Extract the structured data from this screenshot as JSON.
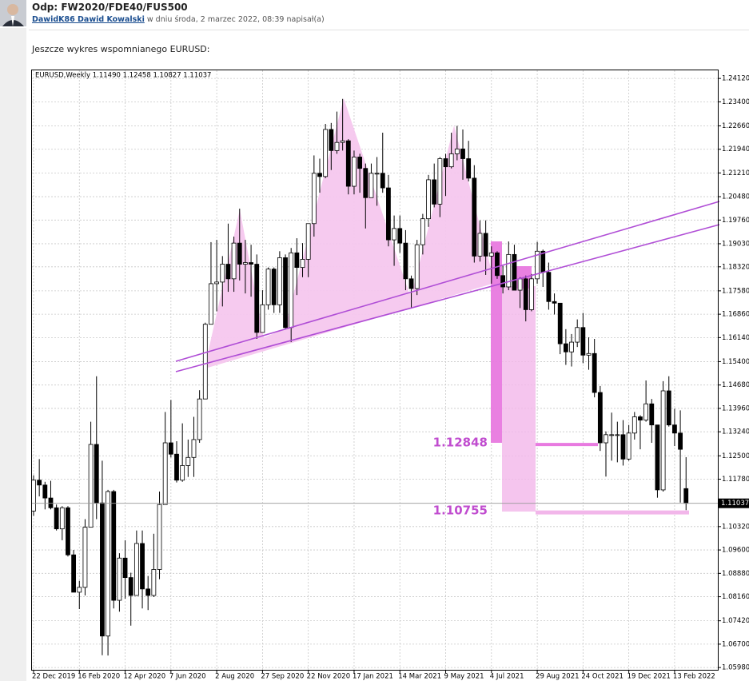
{
  "post": {
    "title": "Odp: FW2020/FDE40/FUS500",
    "author": "DawidK86 Dawid Kowalski",
    "meta": "w dniu środa, 2 marzec 2022, 08:39 napisał(a)",
    "body": "Jeszcze wykres wspomnianego EURUSD:"
  },
  "chart_data": {
    "type": "candlestick",
    "title": "EURUSD,Weekly  1.11490 1.12458 1.10827 1.11037",
    "categories": [
      "22 Dec 2019",
      null,
      null,
      null,
      null,
      null,
      null,
      null,
      "16 Feb 2020",
      null,
      null,
      null,
      null,
      null,
      null,
      null,
      "12 Apr 2020",
      null,
      null,
      null,
      null,
      null,
      null,
      null,
      "7 Jun 2020",
      null,
      null,
      null,
      null,
      null,
      null,
      null,
      "2 Aug 2020",
      null,
      null,
      null,
      null,
      null,
      null,
      null,
      "27 Sep 2020",
      null,
      null,
      null,
      null,
      null,
      null,
      null,
      "22 Nov 2020",
      null,
      null,
      null,
      null,
      null,
      null,
      null,
      "17 Jan 2021",
      null,
      null,
      null,
      null,
      null,
      null,
      null,
      "14 Mar 2021",
      null,
      null,
      null,
      null,
      null,
      null,
      null,
      "9 May 2021",
      null,
      null,
      null,
      null,
      null,
      null,
      null,
      "4 Jul 2021",
      null,
      null,
      null,
      null,
      null,
      null,
      null,
      "29 Aug 2021",
      null,
      null,
      null,
      null,
      null,
      null,
      null,
      "24 Oct 2021",
      null,
      null,
      null,
      null,
      null,
      null,
      null,
      "19 Dec 2021",
      null,
      null,
      null,
      null,
      null,
      null,
      null,
      "13 Feb 2022",
      null,
      null
    ],
    "open": [
      1.108,
      1.1175,
      1.116,
      1.112,
      1.109,
      1.1025,
      1.109,
      1.0945,
      1.083,
      1.0845,
      1.103,
      1.1285,
      1.1105,
      1.0695,
      1.114,
      1.0805,
      1.0935,
      1.0875,
      1.082,
      1.098,
      1.084,
      1.082,
      1.09,
      1.11,
      1.129,
      1.1255,
      1.1175,
      1.122,
      1.1245,
      1.13,
      1.1425,
      1.1655,
      1.178,
      1.1785,
      1.184,
      1.1795,
      1.1905,
      1.184,
      1.1845,
      1.184,
      1.163,
      1.1715,
      1.1825,
      1.1715,
      1.186,
      1.1645,
      1.1875,
      1.183,
      1.1855,
      1.1965,
      1.212,
      1.211,
      1.2255,
      1.219,
      1.2215,
      1.222,
      1.208,
      1.217,
      1.2135,
      1.2045,
      1.212,
      1.212,
      1.2075,
      1.1915,
      1.195,
      1.1905,
      1.1795,
      1.1765,
      1.19,
      1.198,
      1.21,
      1.2025,
      1.2165,
      1.214,
      1.218,
      1.2195,
      1.2165,
      1.2105,
      1.1865,
      1.1935,
      1.1865,
      1.1875,
      1.1805,
      1.177,
      1.187,
      1.176,
      1.1795,
      1.17,
      1.1795,
      1.188,
      1.1815,
      1.1725,
      1.172,
      1.1595,
      1.157,
      1.16,
      1.1645,
      1.156,
      1.1565,
      1.1445,
      1.129,
      1.1315,
      1.1315,
      1.1315,
      1.124,
      1.132,
      1.137,
      1.136,
      1.141,
      1.1345,
      1.1145,
      1.145,
      1.1345,
      1.132,
      1.1149
    ],
    "high": [
      1.119,
      1.124,
      1.117,
      1.1173,
      1.11,
      1.1095,
      1.1095,
      1.096,
      1.0865,
      1.1055,
      1.1355,
      1.1495,
      1.1235,
      1.1145,
      1.1145,
      1.095,
      1.099,
      1.089,
      1.102,
      1.102,
      1.088,
      1.101,
      1.114,
      1.1385,
      1.1422,
      1.1295,
      1.135,
      1.13,
      1.137,
      1.1452,
      1.166,
      1.1908,
      1.1915,
      1.1865,
      1.1965,
      1.1925,
      1.2011,
      1.1915,
      1.19,
      1.187,
      1.176,
      1.183,
      1.183,
      1.188,
      1.187,
      1.189,
      1.192,
      1.1905,
      1.1965,
      1.2175,
      1.2165,
      1.2272,
      1.2275,
      1.231,
      1.2349,
      1.2225,
      1.219,
      1.218,
      1.215,
      1.215,
      1.217,
      1.2245,
      1.2115,
      1.199,
      1.199,
      1.1945,
      1.1805,
      1.1915,
      1.1995,
      1.2115,
      1.215,
      1.217,
      1.218,
      1.2245,
      1.2266,
      1.2255,
      1.222,
      1.2145,
      1.1975,
      1.1975,
      1.1895,
      1.188,
      1.1835,
      1.191,
      1.19,
      1.18,
      1.1805,
      1.181,
      1.1909,
      1.1885,
      1.1845,
      1.175,
      1.172,
      1.164,
      1.1625,
      1.167,
      1.169,
      1.1615,
      1.161,
      1.1465,
      1.1325,
      1.1383,
      1.1355,
      1.136,
      1.1345,
      1.1385,
      1.1375,
      1.1482,
      1.1425,
      1.1345,
      1.148,
      1.1495,
      1.1395,
      1.139,
      1.12458
    ],
    "low": [
      1.1065,
      1.1125,
      1.1085,
      1.1085,
      1.102,
      1.099,
      1.094,
      1.083,
      1.0778,
      1.082,
      1.103,
      1.1055,
      1.0636,
      1.0635,
      1.078,
      1.077,
      1.081,
      1.0727,
      1.082,
      1.078,
      1.0775,
      1.0815,
      1.087,
      1.11,
      1.1245,
      1.1168,
      1.117,
      1.1185,
      1.1185,
      1.129,
      1.1425,
      1.1655,
      1.1695,
      1.171,
      1.1755,
      1.1755,
      1.179,
      1.175,
      1.174,
      1.161,
      1.163,
      1.17,
      1.169,
      1.169,
      1.164,
      1.16,
      1.1745,
      1.18,
      1.18,
      1.1925,
      1.206,
      1.2105,
      1.213,
      1.218,
      1.219,
      1.2055,
      1.2055,
      1.206,
      1.195,
      1.2045,
      1.202,
      1.206,
      1.1895,
      1.1835,
      1.1875,
      1.176,
      1.1704,
      1.1745,
      1.187,
      1.1955,
      1.2015,
      1.1985,
      1.205,
      1.2135,
      1.216,
      1.21,
      1.2095,
      1.1845,
      1.1848,
      1.1807,
      1.178,
      1.1795,
      1.175,
      1.176,
      1.176,
      1.1705,
      1.1664,
      1.1695,
      1.178,
      1.177,
      1.17,
      1.1685,
      1.1563,
      1.153,
      1.1525,
      1.1585,
      1.1535,
      1.1515,
      1.143,
      1.1265,
      1.1186,
      1.1235,
      1.123,
      1.122,
      1.1235,
      1.13,
      1.127,
      1.1355,
      1.129,
      1.1121,
      1.114,
      1.134,
      1.128,
      1.1106,
      1.10827
    ],
    "close": [
      1.1175,
      1.116,
      1.112,
      1.109,
      1.1025,
      1.109,
      1.0945,
      1.083,
      1.0845,
      1.103,
      1.1285,
      1.1105,
      1.0695,
      1.114,
      1.0805,
      1.0935,
      1.0875,
      1.082,
      1.098,
      1.084,
      1.082,
      1.09,
      1.11,
      1.129,
      1.1255,
      1.1175,
      1.122,
      1.1245,
      1.13,
      1.1425,
      1.1655,
      1.178,
      1.1785,
      1.184,
      1.1795,
      1.1905,
      1.184,
      1.1845,
      1.184,
      1.163,
      1.1715,
      1.1825,
      1.1715,
      1.186,
      1.1645,
      1.1875,
      1.183,
      1.1855,
      1.1965,
      1.212,
      1.211,
      1.2255,
      1.219,
      1.2215,
      1.222,
      1.208,
      1.217,
      1.2135,
      1.2045,
      1.212,
      1.212,
      1.2075,
      1.1915,
      1.195,
      1.1905,
      1.1795,
      1.1765,
      1.19,
      1.198,
      1.21,
      1.2025,
      1.2165,
      1.214,
      1.218,
      1.2195,
      1.2165,
      1.2105,
      1.1865,
      1.1935,
      1.1865,
      1.1875,
      1.1805,
      1.177,
      1.187,
      1.176,
      1.1795,
      1.17,
      1.1795,
      1.188,
      1.1815,
      1.1725,
      1.172,
      1.1595,
      1.157,
      1.16,
      1.1645,
      1.156,
      1.1565,
      1.1445,
      1.129,
      1.1315,
      1.1315,
      1.1315,
      1.124,
      1.132,
      1.137,
      1.136,
      1.141,
      1.1345,
      1.1145,
      1.145,
      1.1345,
      1.132,
      1.127,
      1.11037
    ],
    "ylim": [
      1.0591,
      1.2437
    ],
    "yticks": [
      {
        "value": 1.2412,
        "label": "1.24120"
      },
      {
        "value": 1.234,
        "label": "1.23400"
      },
      {
        "value": 1.2266,
        "label": "1.22660"
      },
      {
        "value": 1.2194,
        "label": "1.21940"
      },
      {
        "value": 1.2121,
        "label": "1.21210"
      },
      {
        "value": 1.2048,
        "label": "1.20480"
      },
      {
        "value": 1.1976,
        "label": "1.19760"
      },
      {
        "value": 1.1903,
        "label": "1.19030"
      },
      {
        "value": 1.1832,
        "label": "1.18320"
      },
      {
        "value": 1.1758,
        "label": "1.17580"
      },
      {
        "value": 1.1686,
        "label": "1.16860"
      },
      {
        "value": 1.1614,
        "label": "1.16140"
      },
      {
        "value": 1.154,
        "label": "1.15400"
      },
      {
        "value": 1.1468,
        "label": "1.14680"
      },
      {
        "value": 1.1396,
        "label": "1.13960"
      },
      {
        "value": 1.1324,
        "label": "1.13240"
      },
      {
        "value": 1.125,
        "label": "1.12500"
      },
      {
        "value": 1.1178,
        "label": "1.11780"
      },
      {
        "value": 1.1032,
        "label": "1.10320"
      },
      {
        "value": 1.096,
        "label": "1.09600"
      },
      {
        "value": 1.0888,
        "label": "1.08880"
      },
      {
        "value": 1.0816,
        "label": "1.08160"
      },
      {
        "value": 1.0742,
        "label": "1.07420"
      },
      {
        "value": 1.067,
        "label": "1.06700"
      },
      {
        "value": 1.0598,
        "label": "1.05980"
      }
    ],
    "grid": true,
    "up_color": "#ffffff",
    "down_color": "#000000",
    "levels": [
      1.12848,
      1.10755
    ]
  }
}
